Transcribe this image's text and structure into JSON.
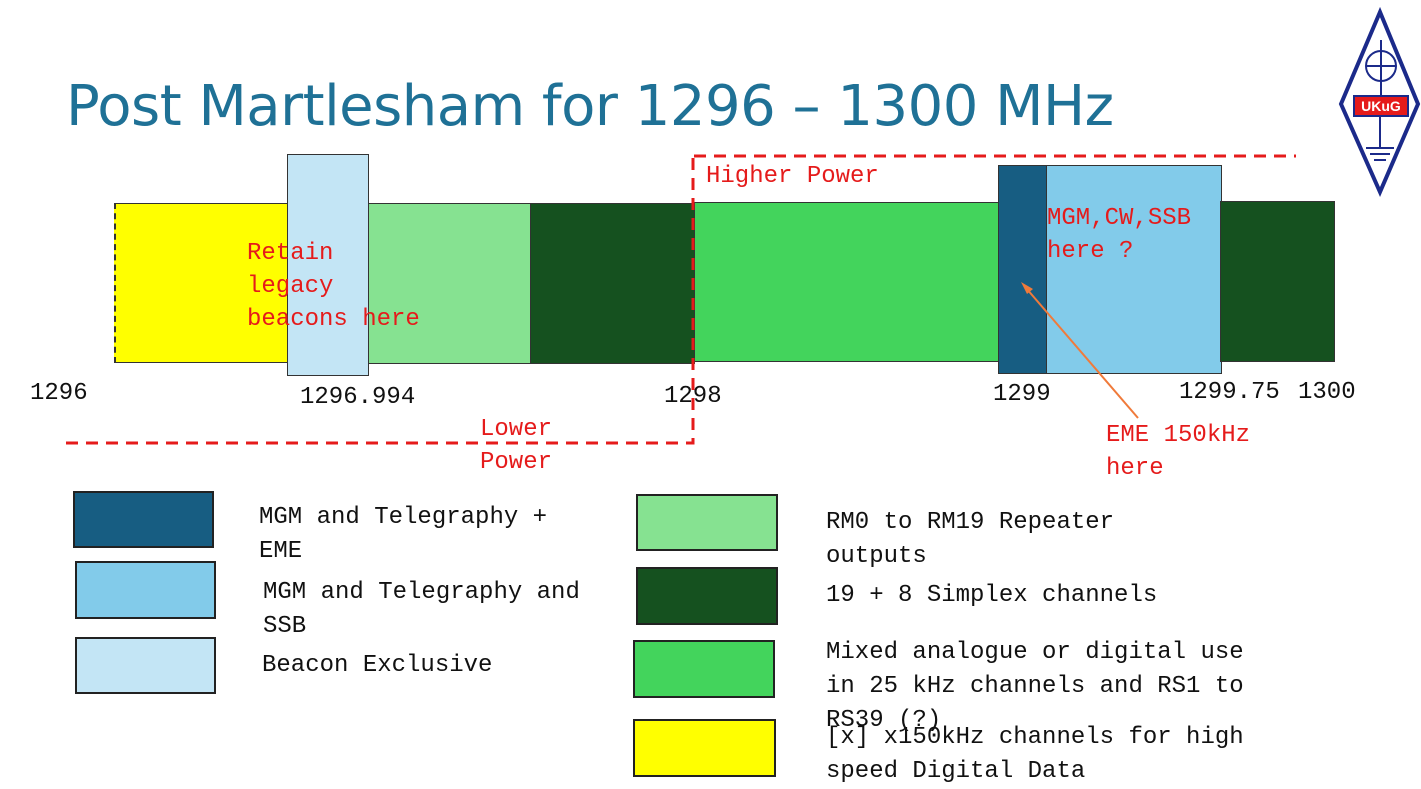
{
  "title": "Post Martlesham for 1296 – 1300 MHz",
  "colors": {
    "mgm_eme": "#175d82",
    "mgm_ssb": "#82cbea",
    "beacon": "#c3e5f5",
    "repeater": "#86e291",
    "simplex": "#15511f",
    "mixed": "#43d45c",
    "high_speed": "#ffff00",
    "annotation": "#e51b1b",
    "arrow": "#f07a3a"
  },
  "band": {
    "ticks": [
      "1296",
      "1296.994",
      "1298",
      "1299",
      "1299.75",
      "1300"
    ]
  },
  "annotations": {
    "higher_power": "Higher Power",
    "lower_power": "Lower\nPower",
    "retain_beacons": "Retain\nlegacy\nbeacons here",
    "mgm_cw_ssb": "MGM,CW,SSB\nhere ?",
    "eme": "EME 150kHz\nhere"
  },
  "legend": {
    "mgm_eme": "MGM and Telegraphy +\nEME",
    "mgm_ssb": "MGM and Telegraphy and\nSSB",
    "beacon": "Beacon Exclusive",
    "repeater": "RM0 to RM19 Repeater\noutputs",
    "simplex": "19 + 8 Simplex channels",
    "mixed": "Mixed analogue or digital use\nin 25 kHz channels and RS1 to\nRS39 (?)",
    "high_speed": "[x] x150kHz channels for high\nspeed Digital Data"
  },
  "logo": {
    "text": "UKuG"
  }
}
